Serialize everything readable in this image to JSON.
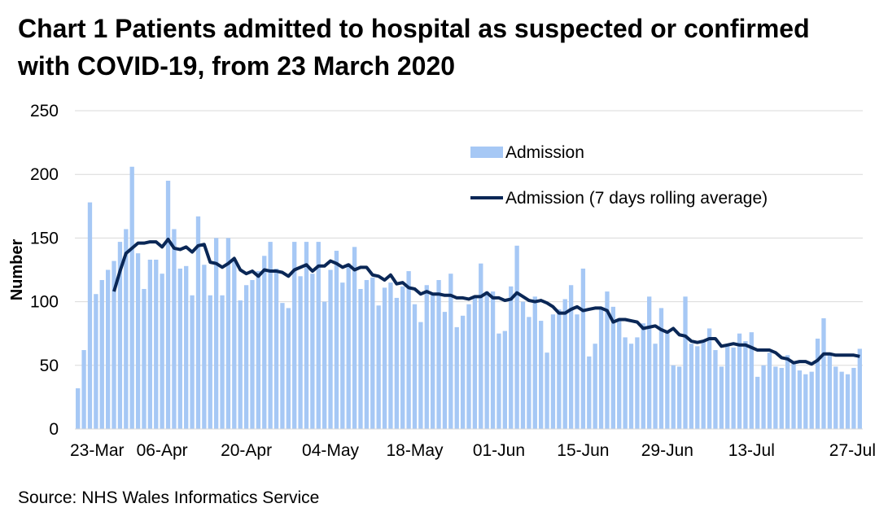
{
  "chart_data": {
    "type": "bar",
    "title": "Chart 1 Patients admitted to hospital as suspected or confirmed with COVID-19, from 23 March 2020",
    "ylabel": "Number",
    "ylim": [
      0,
      250
    ],
    "yticks": [
      0,
      50,
      100,
      150,
      200,
      250
    ],
    "xtick_labels": [
      "23-Mar",
      "06-Apr",
      "20-Apr",
      "04-May",
      "18-May",
      "01-Jun",
      "15-Jun",
      "29-Jun",
      "13-Jul",
      "27-Jul"
    ],
    "xtick_day_index": [
      0,
      14,
      28,
      42,
      56,
      70,
      84,
      98,
      112,
      126
    ],
    "start_label": "23-Mar",
    "grid": "horizontal",
    "legend_position": "top-right",
    "bar_color": "#A6C8F5",
    "line_color": "#0A2756",
    "series": [
      {
        "name": "Admission",
        "type": "bar",
        "values": [
          32,
          62,
          178,
          106,
          117,
          125,
          132,
          147,
          157,
          206,
          138,
          110,
          133,
          133,
          122,
          195,
          157,
          126,
          128,
          105,
          167,
          129,
          105,
          150,
          105,
          150,
          132,
          101,
          113,
          117,
          124,
          136,
          147,
          126,
          99,
          95,
          147,
          120,
          147,
          122,
          147,
          100,
          125,
          140,
          115,
          130,
          143,
          110,
          117,
          119,
          97,
          111,
          115,
          103,
          112,
          124,
          98,
          84,
          113,
          107,
          117,
          92,
          122,
          80,
          89,
          98,
          103,
          130,
          108,
          108,
          75,
          77,
          112,
          144,
          100,
          88,
          104,
          85,
          60,
          90,
          94,
          102,
          113,
          90,
          126,
          57,
          67,
          95,
          108,
          96,
          86,
          72,
          67,
          72,
          83,
          104,
          67,
          95,
          77,
          50,
          49,
          104,
          67,
          65,
          69,
          79,
          62,
          49,
          65,
          64,
          75,
          69,
          76,
          41,
          50,
          60,
          49,
          48,
          58,
          52,
          46,
          43,
          45,
          71,
          87,
          60,
          49,
          45,
          43,
          48,
          63
        ],
        "x_start": "23-Mar"
      },
      {
        "name": "Admission (7 days rolling average)",
        "type": "line",
        "values": [
          null,
          null,
          null,
          null,
          null,
          null,
          108,
          124,
          138,
          142,
          146,
          146,
          147,
          147,
          143,
          149,
          142,
          141,
          143,
          139,
          144,
          145,
          131,
          130,
          127,
          130,
          134,
          125,
          122,
          124,
          120,
          125,
          124,
          124,
          123,
          120,
          125,
          127,
          129,
          124,
          128,
          128,
          132,
          130,
          127,
          129,
          125,
          127,
          127,
          121,
          120,
          117,
          121,
          114,
          115,
          111,
          110,
          106,
          108,
          106,
          106,
          105,
          105,
          103,
          103,
          102,
          104,
          104,
          107,
          103,
          103,
          101,
          102,
          107,
          104,
          101,
          100,
          101,
          99,
          96,
          91,
          91,
          94,
          96,
          93,
          94,
          95,
          95,
          93,
          84,
          86,
          86,
          85,
          84,
          79,
          80,
          81,
          78,
          76,
          79,
          74,
          73,
          69,
          68,
          69,
          71,
          71,
          65,
          66,
          67,
          66,
          66,
          64,
          62,
          62,
          62,
          60,
          56,
          55,
          52,
          53,
          53,
          51,
          54,
          59,
          59,
          58,
          58,
          58,
          58,
          57
        ],
        "x_start": "23-Mar"
      }
    ]
  },
  "page": {
    "title": "Chart 1 Patients admitted to hospital as suspected or confirmed with COVID-19, from 23 March 2020",
    "source": "Source: NHS Wales Informatics Service"
  }
}
